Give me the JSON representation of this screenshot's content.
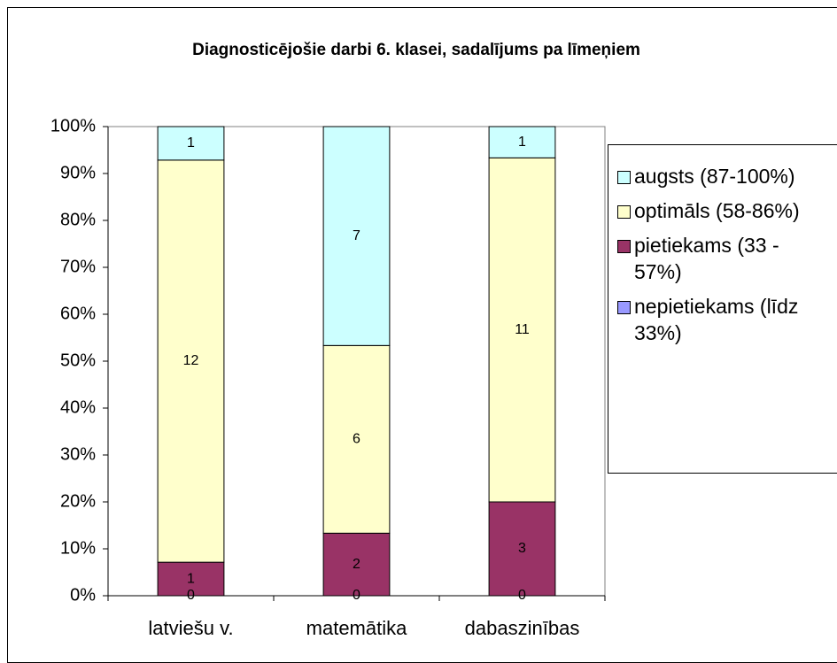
{
  "chart_data": {
    "type": "bar",
    "stacking": "percent",
    "title": "Diagnosticējošie darbi 6. klasei, sadalījums pa līmeņiem",
    "categories": [
      "latviešu v.",
      "matemātika",
      "dabaszinības"
    ],
    "series": [
      {
        "name": "nepietiekams (līdz 33%)",
        "color": "#9999ff",
        "values": [
          0,
          0,
          0
        ]
      },
      {
        "name": "pietiekams (33 - 57%)",
        "color": "#993366",
        "values": [
          1,
          2,
          3
        ]
      },
      {
        "name": "optimāls (58-86%)",
        "color": "#ffffcc",
        "values": [
          12,
          6,
          11
        ]
      },
      {
        "name": "augsts (87-100%)",
        "color": "#ccffff",
        "values": [
          1,
          7,
          1
        ]
      }
    ],
    "ylim": [
      0,
      100
    ],
    "yticks": [
      {
        "value": 0,
        "label": "0%"
      },
      {
        "value": 10,
        "label": "10%"
      },
      {
        "value": 20,
        "label": "20%"
      },
      {
        "value": 30,
        "label": "30%"
      },
      {
        "value": 40,
        "label": "40%"
      },
      {
        "value": 50,
        "label": "50%"
      },
      {
        "value": 60,
        "label": "60%"
      },
      {
        "value": 70,
        "label": "70%"
      },
      {
        "value": 80,
        "label": "80%"
      },
      {
        "value": 90,
        "label": "90%"
      },
      {
        "value": 100,
        "label": "100%"
      }
    ],
    "grid": false,
    "legend": "right"
  }
}
